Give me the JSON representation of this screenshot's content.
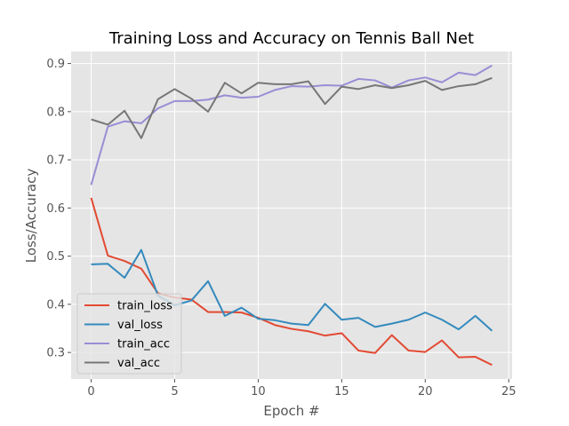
{
  "chart_data": {
    "type": "line",
    "title": "Training Loss and Accuracy on Tennis Ball Net",
    "xlabel": "Epoch #",
    "ylabel": "Loss/Accuracy",
    "xlim": [
      -1.2,
      25.2
    ],
    "ylim": [
      0.245,
      0.925
    ],
    "x_ticks": [
      0,
      5,
      10,
      15,
      20,
      25
    ],
    "y_ticks": [
      0.3,
      0.4,
      0.5,
      0.6,
      0.7,
      0.8,
      0.9
    ],
    "grid": true,
    "legend_position": "lower-left",
    "x": [
      0,
      1,
      2,
      3,
      4,
      5,
      6,
      7,
      8,
      9,
      10,
      11,
      12,
      13,
      14,
      15,
      16,
      17,
      18,
      19,
      20,
      21,
      22,
      23,
      24
    ],
    "series": [
      {
        "name": "train_loss",
        "color": "#E24A33",
        "values": [
          0.621,
          0.501,
          0.49,
          0.474,
          0.423,
          0.414,
          0.41,
          0.384,
          0.384,
          0.383,
          0.372,
          0.357,
          0.349,
          0.344,
          0.335,
          0.34,
          0.304,
          0.299,
          0.336,
          0.304,
          0.301,
          0.325,
          0.29,
          0.291,
          0.274
        ]
      },
      {
        "name": "val_loss",
        "color": "#348ABD",
        "values": [
          0.483,
          0.484,
          0.455,
          0.513,
          0.418,
          0.398,
          0.408,
          0.448,
          0.376,
          0.393,
          0.37,
          0.367,
          0.36,
          0.357,
          0.401,
          0.368,
          0.372,
          0.353,
          0.36,
          0.368,
          0.383,
          0.368,
          0.348,
          0.376,
          0.345
        ]
      },
      {
        "name": "train_acc",
        "color": "#988ED5",
        "values": [
          0.648,
          0.769,
          0.78,
          0.776,
          0.807,
          0.822,
          0.822,
          0.825,
          0.834,
          0.829,
          0.831,
          0.845,
          0.853,
          0.852,
          0.855,
          0.854,
          0.868,
          0.865,
          0.85,
          0.865,
          0.871,
          0.861,
          0.881,
          0.876,
          0.896
        ]
      },
      {
        "name": "val_acc",
        "color": "#777777",
        "values": [
          0.784,
          0.773,
          0.802,
          0.745,
          0.826,
          0.847,
          0.827,
          0.8,
          0.86,
          0.838,
          0.86,
          0.857,
          0.857,
          0.863,
          0.816,
          0.852,
          0.847,
          0.855,
          0.849,
          0.855,
          0.864,
          0.845,
          0.853,
          0.857,
          0.87
        ]
      }
    ]
  },
  "colors": {
    "plot_background": "#E5E5E5",
    "grid": "#FFFFFF",
    "tick_text": "#555555"
  }
}
